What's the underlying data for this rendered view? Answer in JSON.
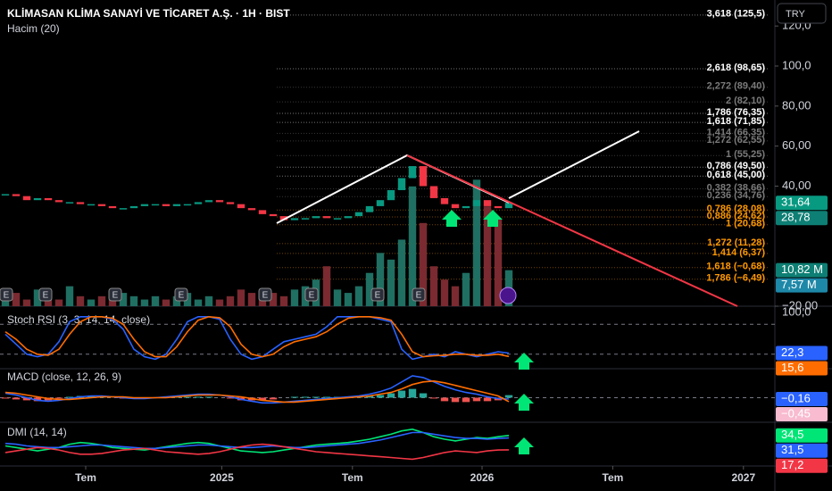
{
  "header": {
    "title": "KLİMASAN KLİMA SANAYİ VE TİCARET A.Ş. · 1H · BIST",
    "volume_label": "Hacim (20)",
    "currency": "TRY"
  },
  "chart_data": {
    "type": "candlestick",
    "xlim": [
      0,
      72
    ],
    "xticks": [
      {
        "value": 8,
        "label": "Tem"
      },
      {
        "value": 20.7,
        "label": "2025"
      },
      {
        "value": 32.9,
        "label": "Tem"
      },
      {
        "value": 45,
        "label": "2026"
      },
      {
        "value": 57.2,
        "label": "Tem"
      },
      {
        "value": 69.4,
        "label": "2027"
      }
    ],
    "ylim": [
      -20,
      133
    ],
    "yticks": [
      {
        "value": 120,
        "label": "120,0"
      },
      {
        "value": 100,
        "label": "100,0"
      },
      {
        "value": 80,
        "label": "80,00"
      },
      {
        "value": 60,
        "label": "60,00"
      },
      {
        "value": 40,
        "label": "40,00"
      },
      {
        "value": -20,
        "label": "−20,00"
      }
    ],
    "series": [
      {
        "color": "#089981",
        "color_down": "#f23645",
        "values": [
          36,
          35,
          33,
          34,
          33,
          32,
          32,
          31,
          31,
          30,
          29,
          29,
          30,
          31,
          31,
          30,
          31,
          31,
          32,
          33,
          32,
          31,
          29,
          28,
          26,
          25,
          23,
          24,
          24,
          25,
          24,
          24,
          25,
          27,
          30,
          33,
          38,
          44,
          50,
          40,
          34,
          31,
          29,
          30,
          33,
          30,
          29,
          31.64
        ]
      }
    ],
    "badges": [
      {
        "value": 31.64,
        "label": "31,64",
        "color": "#089981"
      },
      {
        "value": 28.78,
        "label": "28,78",
        "color": "#0e7f74"
      }
    ],
    "fib_levels": [
      {
        "value": 125.5,
        "label": "3,618 (125,5)",
        "color": "#ffffff"
      },
      {
        "value": 98.65,
        "label": "2,618 (98,65)",
        "color": "#ffffff"
      },
      {
        "value": 89.4,
        "label": "2,272 (89,40)",
        "color": "#7a7a7a"
      },
      {
        "value": 82.1,
        "label": "2 (82,10)",
        "color": "#7a7a7a"
      },
      {
        "value": 76.35,
        "label": "1,786 (76,35)",
        "color": "#ffffff"
      },
      {
        "value": 71.85,
        "label": "1,618 (71,85)",
        "color": "#ffffff"
      },
      {
        "value": 66.35,
        "label": "1,414 (66,35)",
        "color": "#7a7a7a"
      },
      {
        "value": 62.55,
        "label": "1,272 (62,55)",
        "color": "#7a7a7a"
      },
      {
        "value": 55.25,
        "label": "1 (55,25)",
        "color": "#7a7a7a"
      },
      {
        "value": 49.5,
        "label": "0,786 (49,50)",
        "color": "#ffffff"
      },
      {
        "value": 45,
        "label": "0,618 (45,00)",
        "color": "#ffffff"
      },
      {
        "value": 38.66,
        "label": "0,382 (38,66)",
        "color": "#7a7a7a"
      },
      {
        "value": 34.76,
        "label": "0,236 (34,76)",
        "color": "#7a7a7a"
      },
      {
        "value": 28.08,
        "label": "0,786 (28,08)",
        "color": "#ff9800"
      },
      {
        "value": 24.62,
        "label": "0,886 (24,62)",
        "color": "#ff9800"
      },
      {
        "value": 20.68,
        "label": "1 (20,68)",
        "color": "#ff9800"
      },
      {
        "value": 11.28,
        "label": "1,272 (11,28)",
        "color": "#ff9800"
      },
      {
        "value": 6.37,
        "label": "1,414 (6,37)",
        "color": "#ff9800"
      },
      {
        "value": -0.68,
        "label": "1,618 (−0,68)",
        "color": "#ff9800"
      },
      {
        "value": -6.49,
        "label": "1,786 (−6,49)",
        "color": "#ff9800"
      }
    ],
    "volume": {
      "ylim": [
        0,
        92
      ],
      "color": "#1f6f62",
      "color_down": "#7a2a30",
      "values": [
        3,
        4,
        2,
        5,
        3,
        2,
        6,
        3,
        2,
        3,
        2,
        4,
        3,
        2,
        3,
        2,
        3,
        4,
        2,
        3,
        2,
        3,
        5,
        4,
        3,
        4,
        3,
        5,
        6,
        8,
        12,
        5,
        4,
        6,
        10,
        16,
        14,
        20,
        36,
        25,
        12,
        8,
        6,
        10,
        38,
        30,
        26,
        10.82
      ],
      "badges": [
        {
          "value": 10.82,
          "label": "10,82 M",
          "color": "#0e7f74"
        },
        {
          "value": 7.57,
          "label": "7,57 M",
          "color": "#1e88a8"
        }
      ]
    },
    "panels": [
      {
        "title": "Stoch RSI (3, 3, 14, 14, close)",
        "ylim": [
          0,
          100
        ],
        "yticks": [
          {
            "value": 100,
            "label": "100,0"
          }
        ],
        "bands": [
          20,
          80
        ],
        "series": [
          {
            "color": "#2962ff",
            "values": [
              60,
              40,
              20,
              15,
              20,
              45,
              85,
              95,
              95,
              95,
              90,
              70,
              30,
              15,
              10,
              20,
              50,
              85,
              95,
              95,
              90,
              50,
              20,
              10,
              15,
              30,
              45,
              50,
              55,
              60,
              75,
              95,
              95,
              95,
              95,
              90,
              85,
              30,
              10,
              15,
              20,
              15,
              25,
              20,
              15,
              20,
              25,
              22.3
            ]
          },
          {
            "color": "#ff6d00",
            "values": [
              65,
              50,
              30,
              20,
              18,
              30,
              60,
              85,
              95,
              95,
              92,
              80,
              50,
              25,
              15,
              15,
              35,
              65,
              88,
              95,
              93,
              75,
              40,
              20,
              15,
              20,
              35,
              45,
              50,
              55,
              65,
              80,
              92,
              95,
              95,
              93,
              88,
              60,
              25,
              15,
              17,
              18,
              20,
              20,
              18,
              18,
              20,
              15.6
            ]
          }
        ],
        "badges": [
          {
            "value": 22.3,
            "label": "22,3",
            "color": "#2962ff"
          },
          {
            "value": 15.6,
            "label": "15,6",
            "color": "#ff6d00"
          }
        ]
      },
      {
        "title": "MACD (close, 12, 26, 9)",
        "ylim": [
          -2.5,
          3
        ],
        "yticks": [],
        "bands": [
          0
        ],
        "series": [
          {
            "type": "bar",
            "color": "#26a69a",
            "color_down": "#ef5350",
            "values": [
              -0.1,
              -0.2,
              -0.3,
              -0.4,
              -0.3,
              -0.1,
              0.1,
              0.2,
              0.2,
              0.1,
              0,
              -0.1,
              -0.1,
              -0.1,
              0,
              0.1,
              0.1,
              0.1,
              0.1,
              0.1,
              0,
              -0.1,
              -0.3,
              -0.3,
              -0.3,
              -0.2,
              0,
              0.1,
              0.1,
              0.1,
              0.1,
              0.1,
              0.1,
              0.1,
              0.2,
              0.3,
              0.5,
              0.8,
              1,
              0.5,
              -0.1,
              -0.4,
              -0.5,
              -0.5,
              -0.4,
              -0.4,
              -0.3,
              0.29
            ]
          },
          {
            "color": "#2962ff",
            "values": [
              0.5,
              0.3,
              0,
              -0.3,
              -0.4,
              -0.3,
              -0.1,
              0.1,
              0.2,
              0.2,
              0.1,
              0,
              -0.1,
              -0.1,
              0,
              0.1,
              0.2,
              0.3,
              0.4,
              0.4,
              0.3,
              0.1,
              -0.2,
              -0.4,
              -0.6,
              -0.6,
              -0.5,
              -0.4,
              -0.3,
              -0.2,
              -0.1,
              0,
              0.1,
              0.2,
              0.4,
              0.7,
              1.1,
              1.8,
              2.5,
              2.3,
              1.8,
              1.3,
              0.9,
              0.6,
              0.4,
              0.1,
              -0.1,
              -0.16
            ]
          },
          {
            "color": "#ff6d00",
            "values": [
              0.6,
              0.5,
              0.3,
              0.1,
              -0.1,
              -0.2,
              -0.2,
              -0.1,
              0,
              0.1,
              0.1,
              0.1,
              0,
              0,
              0,
              0,
              0.1,
              0.2,
              0.3,
              0.3,
              0.3,
              0.2,
              0.1,
              -0.1,
              -0.3,
              -0.4,
              -0.5,
              -0.5,
              -0.4,
              -0.3,
              -0.2,
              -0.1,
              0,
              0.1,
              0.2,
              0.4,
              0.6,
              1,
              1.5,
              1.8,
              1.9,
              1.7,
              1.4,
              1.1,
              0.8,
              0.5,
              0.2,
              -0.45
            ]
          }
        ],
        "badges": [
          {
            "value": -0.16,
            "label": "−0,16",
            "color": "#2962ff"
          },
          {
            "value": -0.45,
            "label": "−0,45",
            "color": "#f8bbd0"
          }
        ]
      },
      {
        "title": "DMI (14, 14)",
        "ylim": [
          0,
          45
        ],
        "yticks": [],
        "bands": [],
        "series": [
          {
            "color": "#00e676",
            "values": [
              22,
              20,
              18,
              16,
              18,
              20,
              24,
              26,
              25,
              23,
              20,
              19,
              18,
              17,
              19,
              21,
              23,
              25,
              26,
              25,
              22,
              19,
              16,
              15,
              14,
              15,
              17,
              19,
              21,
              23,
              24,
              25,
              26,
              28,
              30,
              33,
              36,
              40,
              42,
              38,
              33,
              30,
              28,
              30,
              32,
              31,
              33,
              34.5
            ]
          },
          {
            "color": "#2962ff",
            "values": [
              25,
              24,
              22,
              21,
              20,
              20,
              21,
              22,
              23,
              23,
              22,
              21,
              20,
              19,
              19,
              20,
              21,
              22,
              23,
              23,
              22,
              21,
              20,
              20,
              21,
              22,
              21,
              20,
              20,
              21,
              22,
              23,
              24,
              25,
              27,
              29,
              32,
              35,
              38,
              38,
              36,
              34,
              32,
              31,
              31,
              30,
              31,
              31.5
            ]
          },
          {
            "color": "#f23645",
            "values": [
              14,
              16,
              18,
              20,
              19,
              17,
              14,
              12,
              12,
              13,
              15,
              17,
              18,
              19,
              17,
              15,
              14,
              13,
              12,
              13,
              15,
              18,
              21,
              23,
              24,
              23,
              21,
              19,
              17,
              15,
              14,
              13,
              12,
              11,
              10,
              9,
              8,
              7,
              6,
              8,
              11,
              14,
              16,
              15,
              14,
              16,
              17,
              17.2
            ]
          }
        ],
        "badges": [
          {
            "value": 34.5,
            "label": "34,5",
            "color": "#00e676"
          },
          {
            "value": 31.5,
            "label": "31,5",
            "color": "#2962ff"
          },
          {
            "value": 17.2,
            "label": "17,2",
            "color": "#f23645"
          }
        ]
      }
    ]
  }
}
